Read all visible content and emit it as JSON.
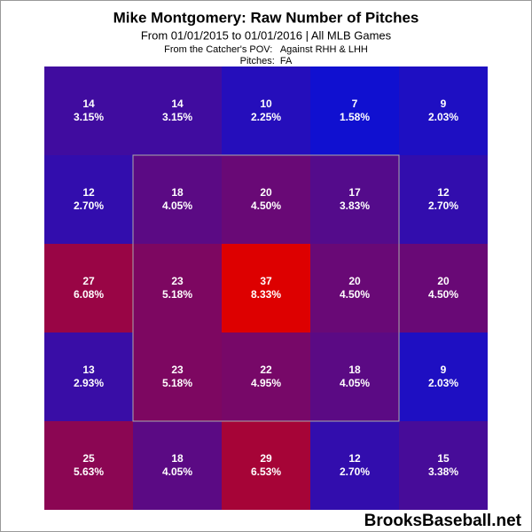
{
  "chart_data": {
    "type": "heatmap",
    "title": "Mike Montgomery: Raw Number of Pitches",
    "subtitle": "From 01/01/2015 to 01/01/2016 | All MLB Games",
    "notes": [
      "From the Catcher's POV:   Against RHH & LHH",
      "Pitches:  FA"
    ],
    "counts": [
      [
        14,
        14,
        10,
        7,
        9
      ],
      [
        12,
        18,
        20,
        17,
        12
      ],
      [
        27,
        23,
        37,
        20,
        20
      ],
      [
        13,
        23,
        22,
        18,
        9
      ],
      [
        25,
        18,
        29,
        12,
        15
      ]
    ],
    "percentages": {
      "values": [
        [
          3.15,
          3.15,
          2.25,
          1.58,
          2.03
        ],
        [
          2.7,
          4.05,
          4.5,
          3.83,
          2.7
        ],
        [
          6.08,
          5.18,
          8.33,
          4.5,
          4.5
        ],
        [
          2.93,
          5.18,
          4.95,
          4.05,
          2.03
        ],
        [
          5.63,
          4.05,
          6.53,
          2.7,
          3.38
        ]
      ],
      "value_labels": [
        [
          "3.15%",
          "3.15%",
          "2.25%",
          "1.58%",
          "2.03%"
        ],
        [
          "2.70%",
          "4.05%",
          "4.50%",
          "3.83%",
          "2.70%"
        ],
        [
          "6.08%",
          "5.18%",
          "8.33%",
          "4.50%",
          "4.50%"
        ],
        [
          "2.93%",
          "5.18%",
          "4.95%",
          "4.05%",
          "2.03%"
        ],
        [
          "5.63%",
          "4.05%",
          "6.53%",
          "2.70%",
          "3.38%"
        ]
      ]
    },
    "color_low": "#1010d0",
    "color_high": "#dd0000",
    "watermark": "BrooksBaseball.net"
  }
}
